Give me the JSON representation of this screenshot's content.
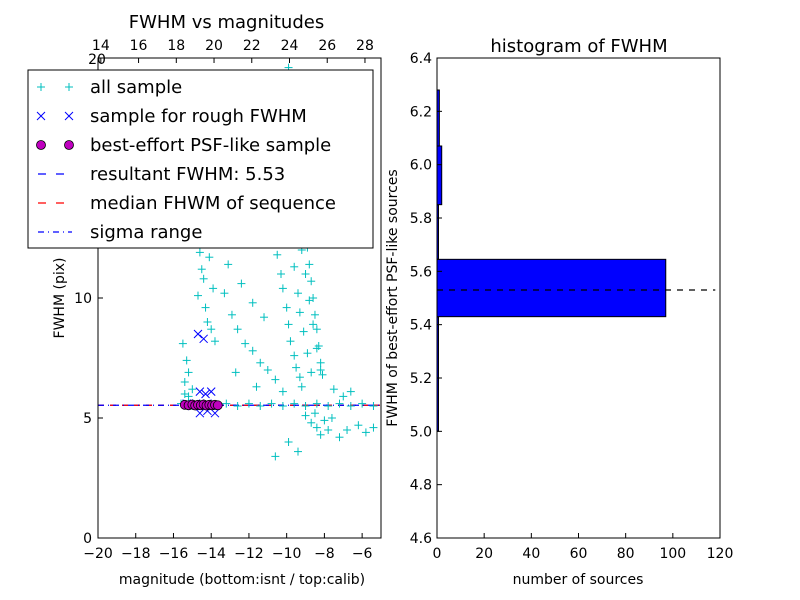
{
  "chart_data": [
    {
      "type": "scatter",
      "title": "FWHM vs magnitudes",
      "xlabel": "magnitude (bottom:isnt / top:calib)",
      "ylabel": "FWHM (pix)",
      "xlim": [
        -20,
        -5
      ],
      "ylim": [
        0,
        20
      ],
      "x_ticks": [
        -20,
        -18,
        -16,
        -14,
        -12,
        -10,
        -8,
        -6
      ],
      "x_tick_labels": [
        "−20",
        "−18",
        "−16",
        "−14",
        "−12",
        "−10",
        "−8",
        "−6"
      ],
      "y_ticks": [
        0,
        5,
        10
      ],
      "y_tick_labels": [
        "0",
        "5",
        "10"
      ],
      "top_axis": {
        "label_values": [
          14,
          16,
          18,
          20,
          22,
          24,
          26,
          28
        ],
        "tick_labels": [
          "14",
          "16",
          "18",
          "20",
          "22",
          "24",
          "26",
          "28"
        ],
        "top_left_label": "20",
        "mapping_offset": 33.85
      },
      "legend": {
        "placement": "upper-left",
        "entries": [
          {
            "label": "all sample",
            "marker": "+",
            "color": "#00bfbf"
          },
          {
            "label": "sample for rough FWHM",
            "marker": "x",
            "color": "#0000ff"
          },
          {
            "label": "best-effort PSF-like sample",
            "marker": "o",
            "color": "#bf00bf"
          },
          {
            "label": "resultant FWHM: 5.53",
            "line": "dashed",
            "color": "#0000ff"
          },
          {
            "label": "median FHWM of sequence",
            "line": "dashed",
            "color": "#ff0000"
          },
          {
            "label": "sigma range",
            "line": "dashdot",
            "color": "#0000ff"
          }
        ]
      },
      "series": [
        {
          "name": "all sample",
          "marker": "+",
          "color": "#00bfbf",
          "points": [
            [
              -15.5,
              8.1
            ],
            [
              -15.3,
              7.4
            ],
            [
              -15.2,
              6.9
            ],
            [
              -15.4,
              6.5
            ],
            [
              -15.0,
              6.2
            ],
            [
              -15.2,
              5.9
            ],
            [
              -15.4,
              6.0
            ],
            [
              -14.8,
              13.2
            ],
            [
              -14.9,
              12.7
            ],
            [
              -14.6,
              11.9
            ],
            [
              -14.5,
              11.2
            ],
            [
              -14.4,
              10.8
            ],
            [
              -14.7,
              10.1
            ],
            [
              -14.3,
              9.6
            ],
            [
              -14.2,
              9.0
            ],
            [
              -14.0,
              13.6
            ],
            [
              -14.1,
              11.7
            ],
            [
              -13.9,
              10.4
            ],
            [
              -14.0,
              8.7
            ],
            [
              -13.8,
              8.2
            ],
            [
              -13.4,
              12.8
            ],
            [
              -13.1,
              11.4
            ],
            [
              -13.3,
              10.2
            ],
            [
              -12.9,
              9.3
            ],
            [
              -12.6,
              8.7
            ],
            [
              -12.2,
              8.1
            ],
            [
              -11.8,
              7.8
            ],
            [
              -11.4,
              7.3
            ],
            [
              -11.0,
              7.0
            ],
            [
              -10.6,
              6.6
            ],
            [
              -12.4,
              10.6
            ],
            [
              -11.8,
              9.8
            ],
            [
              -11.2,
              9.2
            ],
            [
              -12.7,
              6.9
            ],
            [
              -11.6,
              6.3
            ],
            [
              -10.2,
              6.1
            ],
            [
              -10.8,
              13.8
            ],
            [
              -10.6,
              12.5
            ],
            [
              -10.5,
              11.8
            ],
            [
              -10.3,
              11.0
            ],
            [
              -10.2,
              10.4
            ],
            [
              -10.0,
              9.6
            ],
            [
              -9.9,
              8.9
            ],
            [
              -9.8,
              8.2
            ],
            [
              -9.6,
              7.6
            ],
            [
              -9.5,
              7.1
            ],
            [
              -9.3,
              6.7
            ],
            [
              -9.2,
              6.3
            ],
            [
              -10.1,
              17.4
            ],
            [
              -9.9,
              19.6
            ],
            [
              -9.7,
              18.6
            ],
            [
              -9.5,
              16.8
            ],
            [
              -9.4,
              15.9
            ],
            [
              -9.3,
              15.0
            ],
            [
              -9.2,
              14.3
            ],
            [
              -9.1,
              13.6
            ],
            [
              -9.0,
              12.9
            ],
            [
              -8.9,
              12.1
            ],
            [
              -8.8,
              11.4
            ],
            [
              -8.7,
              10.7
            ],
            [
              -8.6,
              10.0
            ],
            [
              -8.5,
              9.3
            ],
            [
              -8.4,
              8.7
            ],
            [
              -8.3,
              8.0
            ],
            [
              -8.2,
              7.3
            ],
            [
              -8.1,
              6.8
            ],
            [
              -9.6,
              14.6
            ],
            [
              -9.4,
              13.2
            ],
            [
              -9.2,
              12.0
            ],
            [
              -9.0,
              11.0
            ],
            [
              -8.8,
              9.9
            ],
            [
              -8.6,
              8.9
            ],
            [
              -8.4,
              7.9
            ],
            [
              -8.2,
              7.0
            ],
            [
              -9.8,
              14.1
            ],
            [
              -9.7,
              12.6
            ],
            [
              -9.6,
              11.3
            ],
            [
              -9.4,
              10.2
            ],
            [
              -9.3,
              9.4
            ],
            [
              -9.1,
              8.6
            ],
            [
              -8.9,
              7.7
            ],
            [
              -8.7,
              6.9
            ],
            [
              -9.0,
              5.1
            ],
            [
              -8.7,
              4.8
            ],
            [
              -8.4,
              4.6
            ],
            [
              -8.2,
              4.3
            ],
            [
              -8.0,
              4.9
            ],
            [
              -7.8,
              4.5
            ],
            [
              -7.6,
              5.0
            ],
            [
              -8.5,
              5.2
            ],
            [
              -7.5,
              6.2
            ],
            [
              -7.0,
              5.9
            ],
            [
              -6.6,
              6.1
            ],
            [
              -6.2,
              4.7
            ],
            [
              -5.8,
              4.4
            ],
            [
              -5.4,
              4.6
            ],
            [
              -6.8,
              4.5
            ],
            [
              -7.2,
              4.2
            ],
            [
              -9.4,
              3.6
            ],
            [
              -10.6,
              3.4
            ],
            [
              -9.9,
              4.0
            ],
            [
              -15.6,
              5.6
            ],
            [
              -15.0,
              5.5
            ],
            [
              -14.4,
              5.6
            ],
            [
              -13.8,
              5.5
            ],
            [
              -13.2,
              5.6
            ],
            [
              -12.6,
              5.5
            ],
            [
              -12.0,
              5.6
            ],
            [
              -11.4,
              5.5
            ],
            [
              -10.8,
              5.6
            ],
            [
              -10.2,
              5.5
            ],
            [
              -9.6,
              5.6
            ],
            [
              -9.0,
              5.5
            ],
            [
              -8.4,
              5.6
            ],
            [
              -7.8,
              5.5
            ],
            [
              -7.2,
              5.6
            ],
            [
              -6.6,
              5.5
            ],
            [
              -6.0,
              5.6
            ],
            [
              -5.4,
              5.5
            ]
          ]
        },
        {
          "name": "sample for rough FWHM",
          "marker": "x",
          "color": "#0000ff",
          "points": [
            [
              -14.7,
              8.5
            ],
            [
              -14.4,
              8.3
            ],
            [
              -14.6,
              6.1
            ],
            [
              -14.3,
              6.0
            ],
            [
              -14.0,
              6.1
            ],
            [
              -14.6,
              5.2
            ],
            [
              -14.2,
              5.3
            ],
            [
              -13.8,
              5.2
            ],
            [
              -15.3,
              5.6
            ],
            [
              -15.0,
              5.5
            ],
            [
              -14.8,
              5.6
            ],
            [
              -14.5,
              5.5
            ],
            [
              -14.2,
              5.6
            ],
            [
              -13.9,
              5.5
            ]
          ]
        },
        {
          "name": "best-effort PSF-like sample",
          "marker": "o",
          "color": "#bf00bf",
          "points": [
            [
              -15.4,
              5.55
            ],
            [
              -15.2,
              5.53
            ],
            [
              -15.0,
              5.56
            ],
            [
              -14.85,
              5.52
            ],
            [
              -14.7,
              5.55
            ],
            [
              -14.55,
              5.53
            ],
            [
              -14.4,
              5.56
            ],
            [
              -14.25,
              5.52
            ],
            [
              -14.1,
              5.55
            ],
            [
              -13.95,
              5.53
            ],
            [
              -13.8,
              5.55
            ],
            [
              -13.65,
              5.53
            ]
          ]
        }
      ],
      "reference_lines": [
        {
          "name": "resultant FWHM: 5.53",
          "y": 5.53,
          "style": "dashed",
          "color": "#0000ff"
        },
        {
          "name": "median FHWM of sequence",
          "y": 5.53,
          "style": "dashed",
          "color": "#ff0000"
        },
        {
          "name": "sigma range",
          "y": 5.53,
          "style": "dashdot",
          "color": "#0000ff"
        }
      ]
    },
    {
      "type": "bar",
      "orientation": "horizontal",
      "title": "histogram of FWHM",
      "xlabel": "number of sources",
      "ylabel": "FWHM of best-effort PSF-like sources",
      "xlim": [
        0,
        120
      ],
      "ylim": [
        4.6,
        6.4
      ],
      "x_ticks": [
        0,
        20,
        40,
        60,
        80,
        100,
        120
      ],
      "y_ticks": [
        4.6,
        4.8,
        5.0,
        5.2,
        5.4,
        5.6,
        5.8,
        6.0,
        6.2,
        6.4
      ],
      "bar_color": "#0000ff",
      "bins": [
        {
          "y0": 5.0,
          "y1": 5.43,
          "count": 0.4
        },
        {
          "y0": 5.43,
          "y1": 5.645,
          "count": 97
        },
        {
          "y0": 5.645,
          "y1": 5.85,
          "count": 0.4
        },
        {
          "y0": 5.85,
          "y1": 6.07,
          "count": 2
        },
        {
          "y0": 6.07,
          "y1": 6.28,
          "count": 1
        }
      ],
      "reference_line": {
        "x_span": [
          0,
          118
        ],
        "y": 5.53,
        "style": "dashed",
        "color": "#000000"
      }
    }
  ]
}
